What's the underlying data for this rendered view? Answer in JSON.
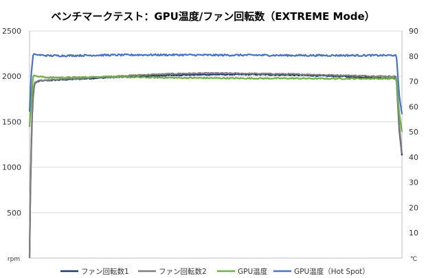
{
  "chart_data": {
    "type": "line",
    "title": "ベンチマークテスト：GPU温度/ファン回転数（EXTREME Mode）",
    "left_axis": {
      "unit": "rpm",
      "range": [
        0,
        2500
      ],
      "ticks": [
        "2500",
        "2000",
        "1500",
        "1000",
        "500"
      ],
      "tick_values": [
        2500,
        2000,
        1500,
        1000,
        500
      ]
    },
    "right_axis": {
      "unit": "℃",
      "range": [
        0,
        90
      ],
      "ticks": [
        "90",
        "80",
        "70",
        "60",
        "50",
        "40",
        "30",
        "20",
        "10"
      ],
      "tick_values": [
        90,
        80,
        70,
        60,
        50,
        40,
        30,
        20,
        10
      ]
    },
    "grid": "horizontal",
    "legend_position": "bottom",
    "colors": {
      "fan1": "#203864",
      "fan2": "#7f7f7f",
      "gpu_temp": "#70ad47",
      "hot_spot": "#4472c4",
      "grid": "#d9d9d9",
      "axis": "#bfbfbf"
    },
    "x_range": [
      0,
      100
    ],
    "series": [
      {
        "name": "ファン回転数1",
        "axis": "left",
        "color": "#203864",
        "x": [
          0,
          0.3,
          0.8,
          1.3,
          2,
          3,
          5,
          10,
          20,
          30,
          40,
          50,
          60,
          70,
          80,
          90,
          97,
          98.5,
          99.3,
          100
        ],
        "y": [
          0,
          950,
          1700,
          1920,
          1940,
          1950,
          1955,
          1965,
          1985,
          2000,
          2015,
          2020,
          2020,
          2015,
          2005,
          1990,
          1980,
          1985,
          1400,
          1130
        ]
      },
      {
        "name": "ファン回転数2",
        "axis": "left",
        "color": "#7f7f7f",
        "x": [
          0,
          0.3,
          0.8,
          1.3,
          2,
          3,
          5,
          10,
          20,
          30,
          40,
          50,
          60,
          70,
          80,
          90,
          97,
          98.5,
          99.3,
          100
        ],
        "y": [
          0,
          1000,
          1750,
          1930,
          1945,
          1955,
          1960,
          1970,
          1995,
          2015,
          2030,
          2035,
          2030,
          2025,
          2015,
          2005,
          2000,
          2000,
          1450,
          1150
        ]
      },
      {
        "name": "GPU温度",
        "axis": "right",
        "color": "#70ad47",
        "x": [
          0,
          0.4,
          1,
          2,
          5,
          10,
          20,
          30,
          40,
          50,
          60,
          70,
          80,
          90,
          97,
          98.5,
          99.3,
          100
        ],
        "y": [
          52,
          62,
          72.5,
          72,
          71.5,
          71.5,
          71.8,
          71.6,
          71.4,
          71.3,
          71.2,
          71.2,
          71.1,
          71.1,
          71.1,
          71,
          57,
          50
        ]
      },
      {
        "name": "GPU温度（Hot Spot）",
        "axis": "right",
        "color": "#4472c4",
        "x": [
          0,
          0.4,
          1,
          2,
          5,
          10,
          20,
          30,
          40,
          50,
          60,
          70,
          80,
          90,
          97,
          98.5,
          99.3,
          100
        ],
        "y": [
          58,
          72,
          81,
          80.5,
          80.2,
          80.2,
          80.4,
          80.5,
          80.5,
          80.4,
          80.4,
          80.3,
          80.3,
          80.3,
          80.3,
          80.5,
          64,
          57
        ]
      }
    ]
  }
}
